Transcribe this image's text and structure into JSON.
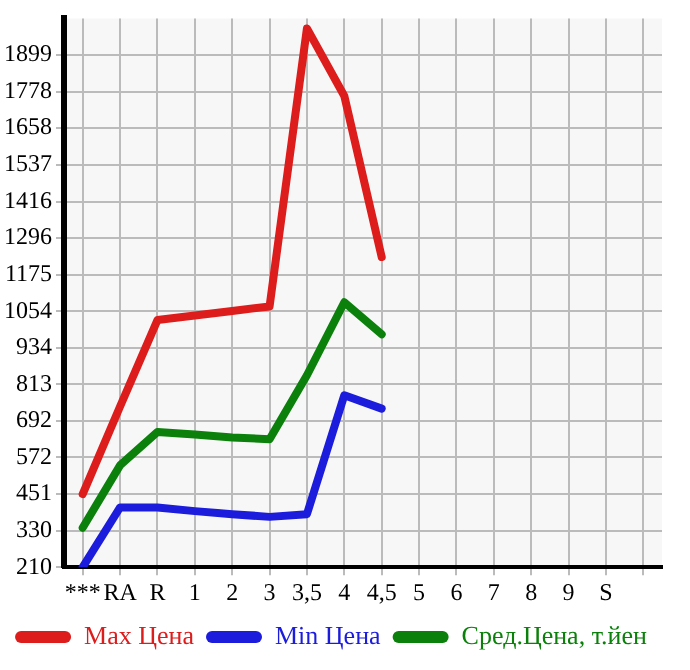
{
  "chart_data": {
    "type": "line",
    "categories": [
      "***",
      "RA",
      "R",
      "1",
      "2",
      "3",
      "3,5",
      "4",
      "4,5",
      "5",
      "6",
      "7",
      "8",
      "9",
      "S",
      null
    ],
    "series": [
      {
        "name": "Max Цена",
        "color": "#dd1c1c",
        "values": [
          451,
          740,
          1025,
          1040,
          1055,
          1070,
          1987,
          1764,
          1233,
          null,
          null,
          null,
          null,
          null,
          null,
          null
        ]
      },
      {
        "name": "Min Цена",
        "color": "#1c1cdd",
        "values": [
          210,
          407,
          407,
          395,
          385,
          376,
          385,
          777,
          733,
          null,
          null,
          null,
          null,
          null,
          null,
          null
        ]
      },
      {
        "name": "Сред.Цена, т.йен",
        "color": "#0b800b",
        "values": [
          340,
          546,
          656,
          648,
          638,
          632,
          843,
          1084,
          978,
          null,
          null,
          null,
          null,
          null,
          null,
          null
        ]
      }
    ],
    "ylim": [
      210,
      2020
    ],
    "yticks": [
      210,
      330,
      451,
      572,
      692,
      813,
      934,
      1054,
      1175,
      1296,
      1416,
      1537,
      1658,
      1778,
      1899
    ],
    "grid": true,
    "legend": "bottom",
    "marker": "none",
    "line_style": "solid"
  }
}
